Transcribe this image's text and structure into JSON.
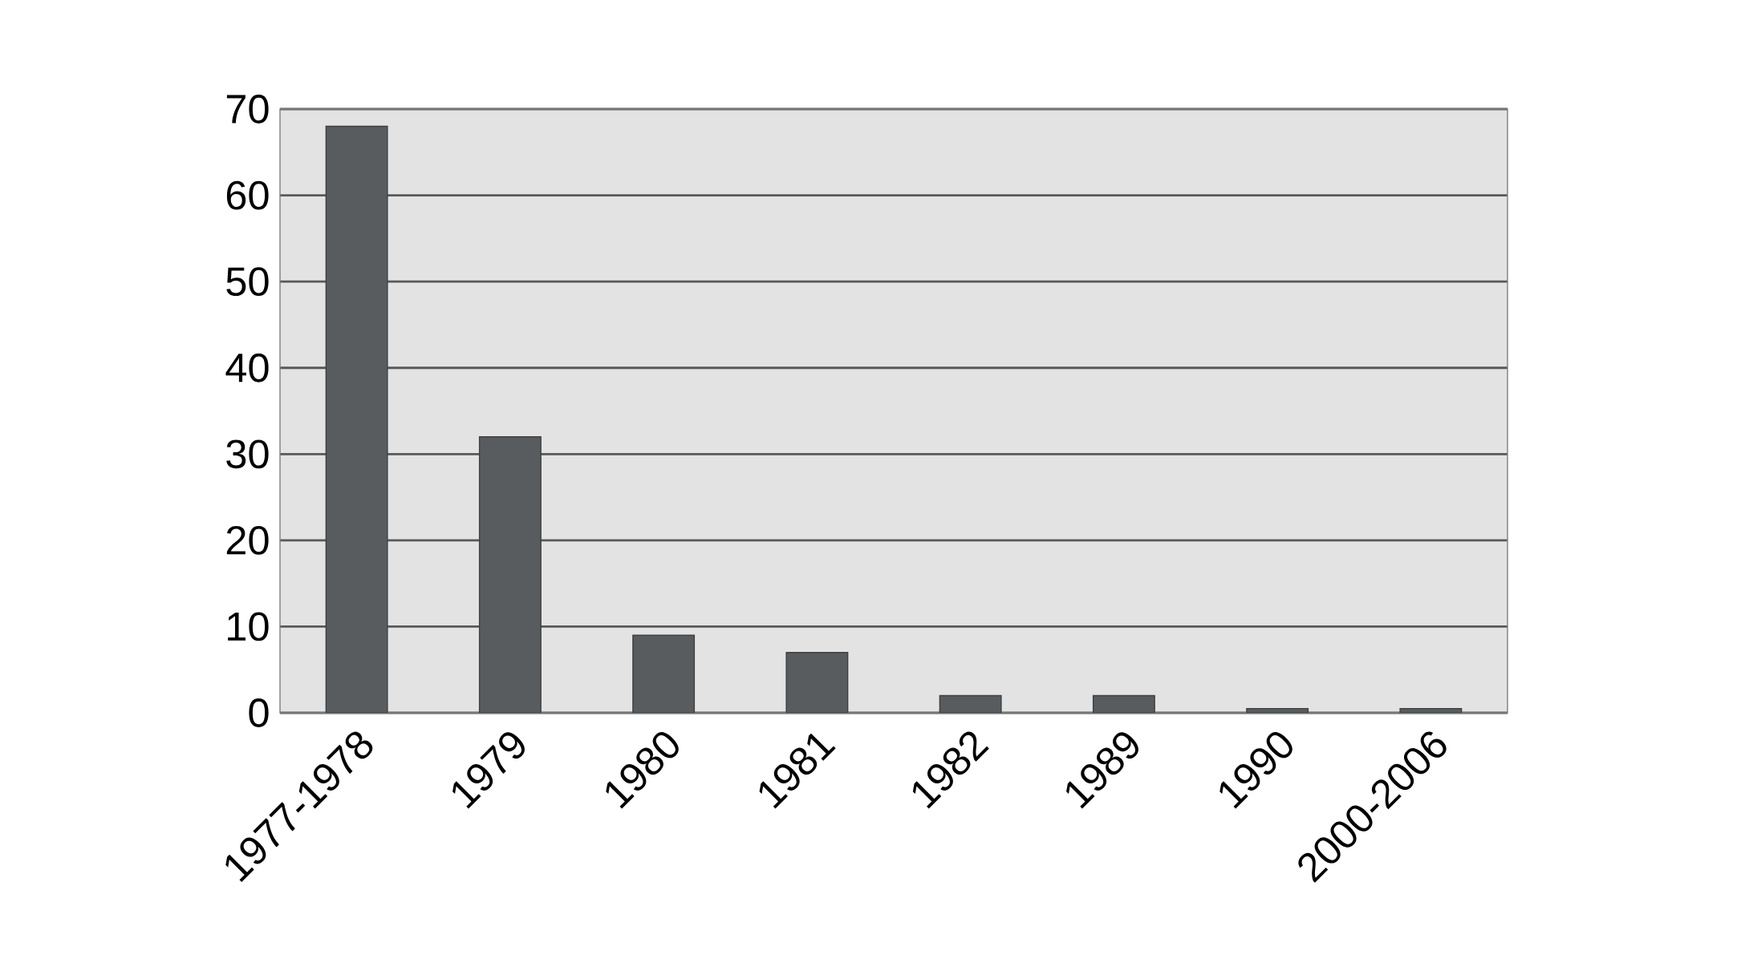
{
  "chart_data": {
    "type": "bar",
    "categories": [
      "1977-1978",
      "1979",
      "1980",
      "1981",
      "1982",
      "1989",
      "1990",
      "2000-2006"
    ],
    "values": [
      68,
      32,
      9,
      7,
      2,
      2,
      0.5,
      0.5
    ],
    "color": "#595c5e",
    "ylim": [
      0,
      70
    ],
    "yticks": [
      0,
      10,
      20,
      30,
      40,
      50,
      60,
      70
    ],
    "grid": "y"
  }
}
